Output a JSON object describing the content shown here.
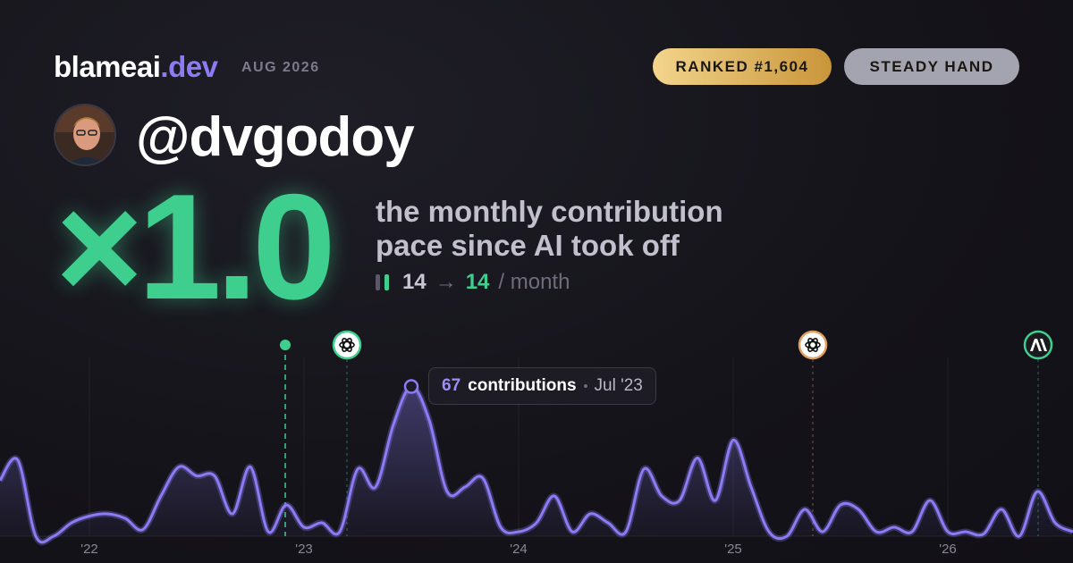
{
  "header": {
    "brand": "blameai",
    "brand_suffix": ".dev",
    "date": "AUG 2026",
    "badges": [
      "RANKED #1,604",
      "STEADY HAND"
    ]
  },
  "profile": {
    "handle": "@dvgodoy"
  },
  "stat": {
    "multiplier": "×1.0",
    "description": [
      "the monthly contribution",
      "pace since AI took off"
    ],
    "before": "14",
    "arrow": "→",
    "after": "14",
    "unit": "/ month"
  },
  "tooltip": {
    "label": "contributions",
    "date": "Jul '23"
  },
  "chart_data": {
    "type": "line",
    "color": "#8b7cf6",
    "categories": [
      null,
      null,
      null,
      null,
      null,
      "'22",
      null,
      null,
      null,
      null,
      null,
      null,
      null,
      null,
      null,
      null,
      null,
      "'23",
      null,
      null,
      null,
      null,
      null,
      null,
      null,
      null,
      null,
      null,
      null,
      "'24",
      null,
      null,
      null,
      null,
      null,
      null,
      null,
      null,
      null,
      null,
      null,
      "'25",
      null,
      null,
      null,
      null,
      null,
      null,
      null,
      null,
      null,
      null,
      null,
      "'26",
      null,
      null,
      null,
      null,
      null,
      null,
      null
    ],
    "values": [
      25,
      34,
      0,
      0,
      6,
      9,
      10,
      8,
      3,
      18,
      31,
      27,
      27,
      10,
      31,
      2,
      14,
      4,
      6,
      2,
      30,
      22,
      50,
      67,
      52,
      20,
      22,
      26,
      4,
      2,
      6,
      18,
      2,
      10,
      6,
      2,
      30,
      18,
      16,
      35,
      16,
      43,
      22,
      2,
      0,
      12,
      2,
      14,
      12,
      2,
      4,
      2,
      16,
      2,
      2,
      1,
      12,
      0,
      20,
      6,
      2
    ],
    "ylim": [
      0,
      80
    ]
  }
}
